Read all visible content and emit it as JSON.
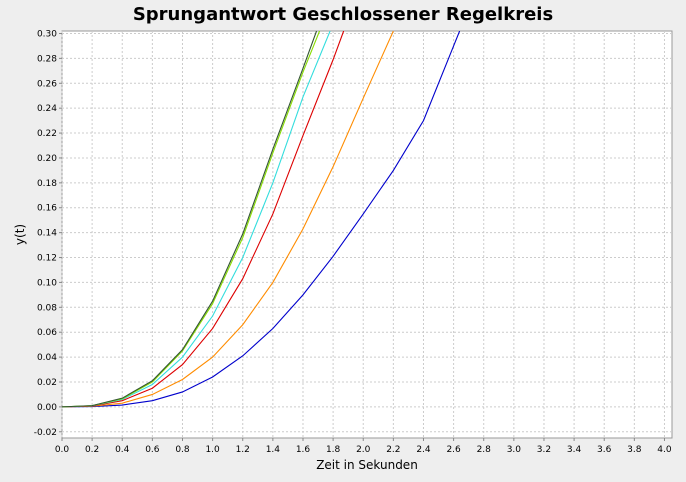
{
  "chart_data": {
    "type": "line",
    "title": "Sprungantwort Geschlossener Regelkreis",
    "xlabel": "Zeit in Sekunden",
    "ylabel": "y(t)",
    "xlim": [
      0,
      4.05
    ],
    "ylim": [
      -0.025,
      0.302
    ],
    "grid": true,
    "legend": "none",
    "xticks": [
      "0.0",
      "0.2",
      "0.4",
      "0.6",
      "0.8",
      "1.0",
      "1.2",
      "1.4",
      "1.6",
      "1.8",
      "2.0",
      "2.2",
      "2.4",
      "2.6",
      "2.8",
      "3.0",
      "3.2",
      "3.4",
      "3.6",
      "3.8",
      "4.0"
    ],
    "yticks": [
      "-0.02",
      "0.00",
      "0.02",
      "0.04",
      "0.06",
      "0.08",
      "0.10",
      "0.12",
      "0.14",
      "0.16",
      "0.18",
      "0.20",
      "0.22",
      "0.24",
      "0.26",
      "0.28",
      "0.30"
    ],
    "series": [
      {
        "color": "#0000cc",
        "x": [
          0,
          0.2,
          0.4,
          0.6,
          0.8,
          1.0,
          1.2,
          1.4,
          1.6,
          1.8,
          2.0,
          2.2,
          2.4,
          2.6,
          2.64
        ],
        "y": [
          0,
          0.0002,
          0.0015,
          0.005,
          0.012,
          0.024,
          0.041,
          0.063,
          0.09,
          0.121,
          0.155,
          0.19,
          0.23,
          0.29,
          0.302
        ]
      },
      {
        "color": "#ff8c00",
        "x": [
          0,
          0.2,
          0.4,
          0.6,
          0.8,
          1.0,
          1.2,
          1.4,
          1.6,
          1.8,
          2.0,
          2.2
        ],
        "y": [
          0,
          0.0005,
          0.003,
          0.01,
          0.022,
          0.04,
          0.066,
          0.1,
          0.143,
          0.193,
          0.248,
          0.302
        ]
      },
      {
        "color": "#dd0000",
        "x": [
          0,
          0.2,
          0.4,
          0.6,
          0.8,
          1.0,
          1.2,
          1.4,
          1.6,
          1.8,
          1.87
        ],
        "y": [
          0,
          0.0008,
          0.005,
          0.015,
          0.034,
          0.063,
          0.103,
          0.155,
          0.218,
          0.279,
          0.302
        ]
      },
      {
        "color": "#33dddd",
        "x": [
          0,
          0.2,
          0.4,
          0.6,
          0.8,
          1.0,
          1.2,
          1.4,
          1.6,
          1.78
        ],
        "y": [
          0,
          0.0009,
          0.006,
          0.018,
          0.04,
          0.073,
          0.12,
          0.18,
          0.249,
          0.302
        ]
      },
      {
        "color": "#88dd00",
        "x": [
          0,
          0.2,
          0.4,
          0.6,
          0.8,
          1.0,
          1.2,
          1.4,
          1.6,
          1.71
        ],
        "y": [
          0,
          0.001,
          0.0065,
          0.02,
          0.045,
          0.083,
          0.136,
          0.204,
          0.269,
          0.302
        ]
      },
      {
        "color": "#335533",
        "x": [
          0,
          0.2,
          0.4,
          0.6,
          0.8,
          1.0,
          1.2,
          1.4,
          1.6,
          1.69
        ],
        "y": [
          0,
          0.001,
          0.007,
          0.021,
          0.046,
          0.085,
          0.139,
          0.207,
          0.272,
          0.302
        ]
      }
    ]
  }
}
